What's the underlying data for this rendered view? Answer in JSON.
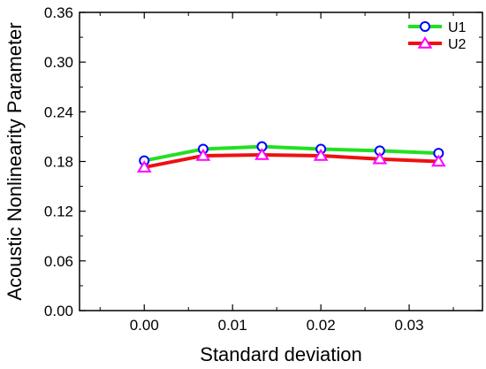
{
  "chart_data": {
    "type": "line",
    "xlabel": "Standard deviation",
    "ylabel": "Acoustic Nonlinearity Parameter",
    "xlim": [
      -0.00733,
      0.0383
    ],
    "ylim": [
      0.0,
      0.36
    ],
    "xticks": [
      0.0,
      0.01,
      0.02,
      0.03
    ],
    "xtick_labels": [
      "0.00",
      "0.01",
      "0.02",
      "0.03"
    ],
    "yticks": [
      0.0,
      0.06,
      0.12,
      0.18,
      0.24,
      0.3,
      0.36
    ],
    "ytick_labels": [
      "0.00",
      "0.06",
      "0.12",
      "0.18",
      "0.24",
      "0.30",
      "0.36"
    ],
    "grid": false,
    "legend_position": "top-right",
    "x": [
      0.0,
      0.00667,
      0.01333,
      0.02,
      0.02667,
      0.03333
    ],
    "series": [
      {
        "name": "U1",
        "values": [
          0.181,
          0.195,
          0.198,
          0.195,
          0.193,
          0.19
        ],
        "color": "#22e022",
        "marker": "circle",
        "marker_color": "#0000ff"
      },
      {
        "name": "U2",
        "values": [
          0.173,
          0.187,
          0.188,
          0.187,
          0.183,
          0.18
        ],
        "color": "#ee1111",
        "marker": "triangle",
        "marker_color": "#ff00ff"
      }
    ]
  }
}
